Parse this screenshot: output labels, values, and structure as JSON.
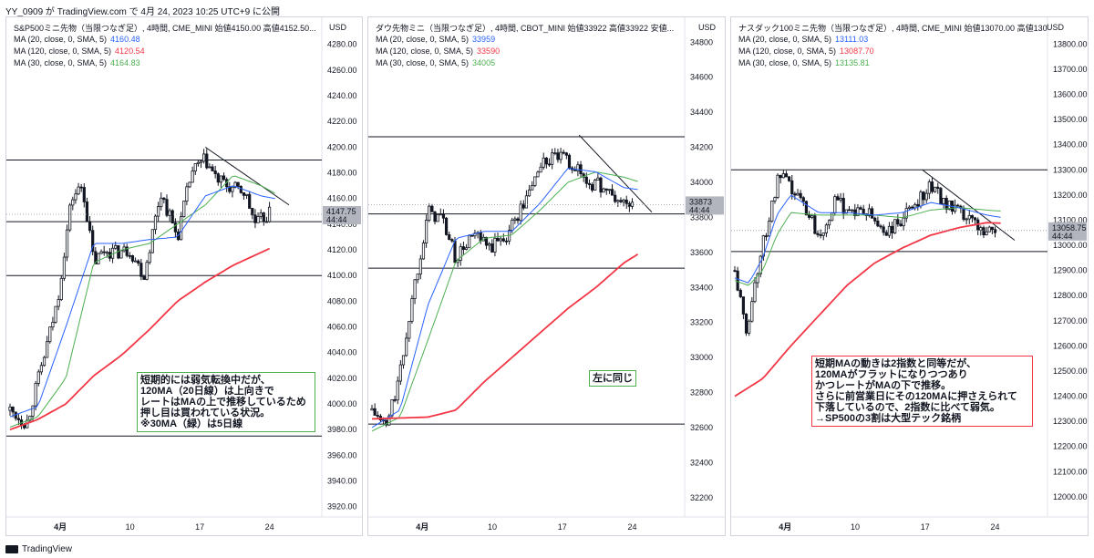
{
  "header": "YY_0909 が TradingView.com で 4月 24, 2023 10:25 UTC+9 に公開",
  "footer": "TradingView",
  "currency": "USD",
  "colors": {
    "ma20": "#2962ff",
    "ma120": "#f23645",
    "ma30": "#4caf50",
    "candle": "#131722"
  },
  "chart_data": [
    {
      "type": "candlestick",
      "title": "S&P500ミニ先物（当限つなぎ足）, 4時間, CME_MINI 始値4150.00 高値4152.50...",
      "ma": [
        {
          "label": "MA (20, close, 0, SMA, 5)",
          "value": "4160.48"
        },
        {
          "label": "MA (120, close, 0, SMA, 5)",
          "value": "4120.54"
        },
        {
          "label": "MA (30, close, 0, SMA, 5)",
          "value": "4164.83"
        }
      ],
      "ylim": [
        3912,
        4294
      ],
      "yticks": [
        "4280.00",
        "4260.00",
        "4240.00",
        "4220.00",
        "4200.00",
        "4180.00",
        "4160.00",
        "4140.00",
        "4120.00",
        "4100.00",
        "4080.00",
        "4060.00",
        "4040.00",
        "4020.00",
        "4000.00",
        "3980.00",
        "3960.00",
        "3940.00",
        "3920.00"
      ],
      "ytick_values": [
        4280,
        4260,
        4240,
        4220,
        4200,
        4180,
        4160,
        4140,
        4120,
        4100,
        4080,
        4060,
        4040,
        4020,
        4000,
        3980,
        3960,
        3940,
        3920
      ],
      "xticks": [
        "4月",
        "10",
        "17",
        "24"
      ],
      "xtick_pos": [
        0.18,
        0.43,
        0.68,
        0.93
      ],
      "price_tag": {
        "price": "4147.75",
        "sub": "44:44",
        "value": 4147.75
      },
      "hlines": [
        4190,
        4142,
        4100,
        3975
      ],
      "trendline": [
        [
          0.7,
          4200
        ],
        [
          1.0,
          4155
        ]
      ],
      "anchors": [
        [
          0,
          3995
        ],
        [
          0.06,
          3985
        ],
        [
          0.12,
          4035
        ],
        [
          0.17,
          4080
        ],
        [
          0.22,
          4160
        ],
        [
          0.26,
          4170
        ],
        [
          0.3,
          4110
        ],
        [
          0.34,
          4120
        ],
        [
          0.38,
          4118
        ],
        [
          0.43,
          4120
        ],
        [
          0.48,
          4100
        ],
        [
          0.54,
          4165
        ],
        [
          0.6,
          4130
        ],
        [
          0.65,
          4180
        ],
        [
          0.7,
          4190
        ],
        [
          0.74,
          4175
        ],
        [
          0.79,
          4168
        ],
        [
          0.84,
          4165
        ],
        [
          0.88,
          4140
        ],
        [
          0.93,
          4148
        ]
      ],
      "ma20": [
        [
          0,
          3990
        ],
        [
          0.1,
          3998
        ],
        [
          0.2,
          4060
        ],
        [
          0.3,
          4125
        ],
        [
          0.4,
          4125
        ],
        [
          0.5,
          4128
        ],
        [
          0.6,
          4130
        ],
        [
          0.7,
          4162
        ],
        [
          0.8,
          4170
        ],
        [
          0.9,
          4162
        ],
        [
          0.95,
          4160
        ]
      ],
      "ma30": [
        [
          0,
          3982
        ],
        [
          0.1,
          3990
        ],
        [
          0.2,
          4020
        ],
        [
          0.3,
          4110
        ],
        [
          0.4,
          4120
        ],
        [
          0.5,
          4125
        ],
        [
          0.6,
          4140
        ],
        [
          0.7,
          4155
        ],
        [
          0.8,
          4178
        ],
        [
          0.9,
          4170
        ],
        [
          0.95,
          4164
        ]
      ],
      "ma120": [
        [
          0,
          3980
        ],
        [
          0.1,
          3988
        ],
        [
          0.2,
          4000
        ],
        [
          0.3,
          4022
        ],
        [
          0.4,
          4038
        ],
        [
          0.5,
          4058
        ],
        [
          0.6,
          4080
        ],
        [
          0.7,
          4095
        ],
        [
          0.8,
          4108
        ],
        [
          0.9,
          4118
        ],
        [
          0.93,
          4121
        ]
      ],
      "annotation": "短期的には弱気転換中だが、\n120MA（20日線）は上向きで\nレートはMAの上で推移しているため\n押し目は買われている状況。\n※30MA（緑）は5日線",
      "annotation_border": "#4caf50"
    },
    {
      "type": "candlestick",
      "title": "ダウ先物ミニ（当限つなぎ足）, 4時間, CBOT_MINI 始値33922 高値33922 安値...",
      "ma": [
        {
          "label": "MA (20, close, 0, SMA, 5)",
          "value": "33959"
        },
        {
          "label": "MA (120, close, 0, SMA, 5)",
          "value": "33590"
        },
        {
          "label": "MA (30, close, 0, SMA, 5)",
          "value": "34005"
        }
      ],
      "ylim": [
        32090,
        34890
      ],
      "yticks": [
        "34800",
        "34600",
        "34400",
        "34200",
        "34000",
        "33800",
        "33600",
        "33400",
        "33200",
        "33000",
        "32800",
        "32600",
        "32400",
        "32200"
      ],
      "ytick_values": [
        34800,
        34600,
        34400,
        34200,
        34000,
        33800,
        33600,
        33400,
        33200,
        33000,
        32800,
        32600,
        32400,
        32200
      ],
      "xticks": [
        "4月",
        "10",
        "17",
        "24"
      ],
      "xtick_pos": [
        0.18,
        0.43,
        0.68,
        0.93
      ],
      "price_tag": {
        "price": "33873",
        "sub": "44:44",
        "value": 33873
      },
      "hlines": [
        34260,
        33820,
        33510,
        32620
      ],
      "trendline": [
        [
          0.74,
          34270
        ],
        [
          1.0,
          33830
        ]
      ],
      "anchors": [
        [
          0,
          32700
        ],
        [
          0.05,
          32600
        ],
        [
          0.1,
          32900
        ],
        [
          0.15,
          33400
        ],
        [
          0.2,
          33830
        ],
        [
          0.25,
          33800
        ],
        [
          0.3,
          33560
        ],
        [
          0.36,
          33700
        ],
        [
          0.42,
          33620
        ],
        [
          0.48,
          33700
        ],
        [
          0.55,
          33900
        ],
        [
          0.6,
          34100
        ],
        [
          0.66,
          34150
        ],
        [
          0.72,
          34100
        ],
        [
          0.77,
          34000
        ],
        [
          0.82,
          33980
        ],
        [
          0.87,
          33900
        ],
        [
          0.93,
          33873
        ]
      ],
      "ma20": [
        [
          0,
          32600
        ],
        [
          0.1,
          32700
        ],
        [
          0.2,
          33300
        ],
        [
          0.3,
          33680
        ],
        [
          0.4,
          33720
        ],
        [
          0.5,
          33720
        ],
        [
          0.6,
          33880
        ],
        [
          0.7,
          34080
        ],
        [
          0.8,
          34060
        ],
        [
          0.9,
          33970
        ],
        [
          0.95,
          33959
        ]
      ],
      "ma30": [
        [
          0,
          32580
        ],
        [
          0.1,
          32660
        ],
        [
          0.2,
          33100
        ],
        [
          0.3,
          33550
        ],
        [
          0.4,
          33680
        ],
        [
          0.5,
          33700
        ],
        [
          0.6,
          33840
        ],
        [
          0.7,
          34000
        ],
        [
          0.8,
          34060
        ],
        [
          0.9,
          34030
        ],
        [
          0.95,
          34005
        ]
      ],
      "ma120": [
        [
          0,
          32650
        ],
        [
          0.1,
          32655
        ],
        [
          0.2,
          32660
        ],
        [
          0.3,
          32700
        ],
        [
          0.4,
          32860
        ],
        [
          0.5,
          33000
        ],
        [
          0.6,
          33140
        ],
        [
          0.7,
          33280
        ],
        [
          0.8,
          33400
        ],
        [
          0.9,
          33540
        ],
        [
          0.95,
          33590
        ]
      ],
      "annotation": "左に同じ",
      "annotation_border": "#4caf50"
    },
    {
      "type": "candlestick",
      "title": "ナスダック100ミニ先物（当限つなぎ足）, 4時間, CME_MINI 始値13070.00 高値13070.00 安値...",
      "ma": [
        {
          "label": "MA (20, close, 0, SMA, 5)",
          "value": "13111.03"
        },
        {
          "label": "MA (120, close, 0, SMA, 5)",
          "value": "13087.70"
        },
        {
          "label": "MA (30, close, 0, SMA, 5)",
          "value": "13135.81"
        }
      ],
      "ylim": [
        11920,
        13870
      ],
      "yticks": [
        "13800.00",
        "13700.00",
        "13600.00",
        "13500.00",
        "13400.00",
        "13300.00",
        "13200.00",
        "13100.00",
        "13000.00",
        "12900.00",
        "12800.00",
        "12700.00",
        "12600.00",
        "12500.00",
        "12400.00",
        "12300.00",
        "12200.00",
        "12100.00",
        "12000.00"
      ],
      "ytick_values": [
        13800,
        13700,
        13600,
        13500,
        13400,
        13300,
        13200,
        13100,
        13000,
        12900,
        12800,
        12700,
        12600,
        12500,
        12400,
        12300,
        12200,
        12100,
        12000
      ],
      "xticks": [
        "4月",
        "10",
        "17",
        "24"
      ],
      "xtick_pos": [
        0.18,
        0.43,
        0.68,
        0.93
      ],
      "price_tag": {
        "price": "13058.75",
        "sub": "44:44",
        "value": 13058.75
      },
      "hlines": [
        13300,
        12975
      ],
      "trendline": [
        [
          0.67,
          13300
        ],
        [
          1.0,
          13020
        ]
      ],
      "anchors": [
        [
          0,
          12900
        ],
        [
          0.04,
          12650
        ],
        [
          0.08,
          12900
        ],
        [
          0.12,
          13100
        ],
        [
          0.16,
          13280
        ],
        [
          0.2,
          13220
        ],
        [
          0.25,
          13160
        ],
        [
          0.3,
          13040
        ],
        [
          0.36,
          13170
        ],
        [
          0.42,
          13140
        ],
        [
          0.48,
          13120
        ],
        [
          0.54,
          13050
        ],
        [
          0.6,
          13100
        ],
        [
          0.65,
          13180
        ],
        [
          0.7,
          13240
        ],
        [
          0.76,
          13160
        ],
        [
          0.82,
          13110
        ],
        [
          0.88,
          13070
        ],
        [
          0.93,
          13058
        ]
      ],
      "ma20": [
        [
          0,
          12870
        ],
        [
          0.05,
          12850
        ],
        [
          0.1,
          12950
        ],
        [
          0.15,
          13120
        ],
        [
          0.2,
          13200
        ],
        [
          0.3,
          13130
        ],
        [
          0.4,
          13130
        ],
        [
          0.5,
          13120
        ],
        [
          0.6,
          13130
        ],
        [
          0.7,
          13170
        ],
        [
          0.8,
          13150
        ],
        [
          0.9,
          13120
        ],
        [
          0.95,
          13111
        ]
      ],
      "ma30": [
        [
          0,
          12860
        ],
        [
          0.05,
          12840
        ],
        [
          0.1,
          12900
        ],
        [
          0.15,
          13040
        ],
        [
          0.2,
          13130
        ],
        [
          0.3,
          13120
        ],
        [
          0.4,
          13120
        ],
        [
          0.5,
          13120
        ],
        [
          0.6,
          13110
        ],
        [
          0.7,
          13140
        ],
        [
          0.8,
          13150
        ],
        [
          0.9,
          13140
        ],
        [
          0.95,
          13136
        ]
      ],
      "ma120": [
        [
          0,
          12400
        ],
        [
          0.1,
          12470
        ],
        [
          0.2,
          12600
        ],
        [
          0.3,
          12720
        ],
        [
          0.4,
          12840
        ],
        [
          0.5,
          12930
        ],
        [
          0.6,
          12990
        ],
        [
          0.7,
          13040
        ],
        [
          0.8,
          13070
        ],
        [
          0.9,
          13090
        ],
        [
          0.95,
          13088
        ]
      ],
      "annotation": "短期MAの動きは2指数と同等だが、\n120MAがフラットになりつつあり\nかつレートがMAの下で推移。\nさらに前営業日にその120MAに押さえられて\n下落しているので、2指数に比べて弱気。\n→SP500の3割は大型テック銘柄",
      "annotation_border": "#f23645"
    }
  ]
}
